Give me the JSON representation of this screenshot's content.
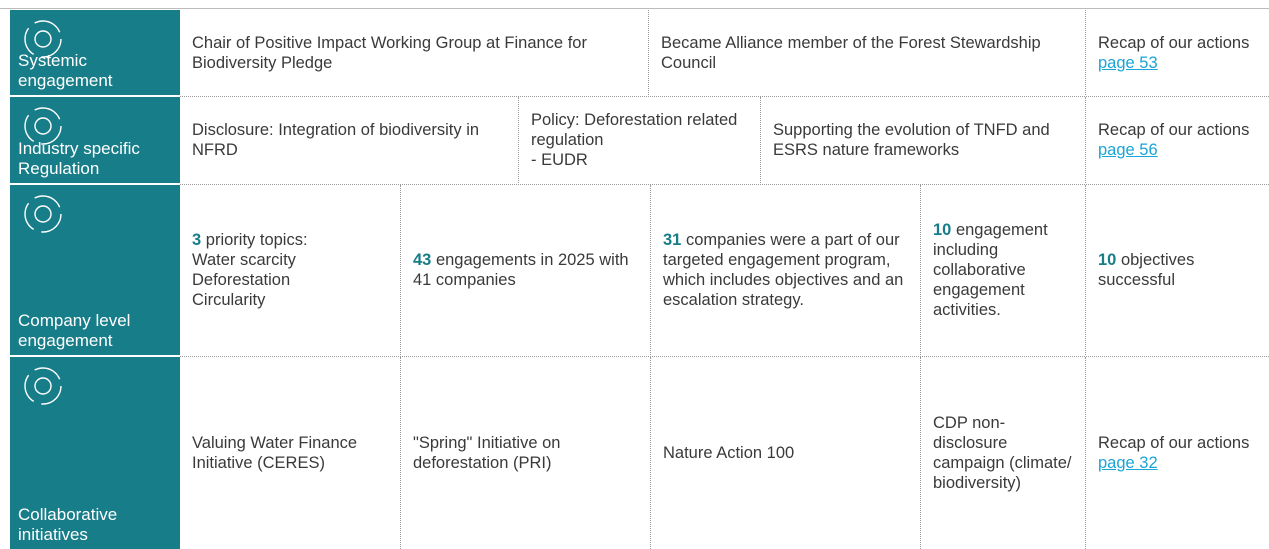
{
  "rows": [
    {
      "label": "Systemic engagement",
      "cells": [
        {
          "text": "Chair of Positive Impact Working Group at Finance for Biodiversity Pledge"
        },
        {
          "text": "Became Alliance member of the Forest Stewardship Council"
        },
        {
          "text": "Recap of our actions",
          "link": "page 53"
        }
      ]
    },
    {
      "label": "Industry specific Regulation",
      "cells": [
        {
          "text": "Disclosure: Integration of biodiversity in NFRD"
        },
        {
          "text": "Policy: Deforestation related regulation",
          "items": [
            "- EUDR"
          ]
        },
        {
          "text": "Supporting the evolution of TNFD and ESRS nature frameworks"
        },
        {
          "text": "Recap of our actions",
          "link": "page 56"
        }
      ]
    },
    {
      "label": "Company level engagement",
      "cells": [
        {
          "highlight": "3",
          "text": "priority topics:",
          "items": [
            "Water scarcity",
            "Deforestation",
            "Circularity"
          ]
        },
        {
          "highlight": "43",
          "text": "engagements in 2025 with 41 companies"
        },
        {
          "highlight": "31",
          "text": "companies were a part of our targeted engagement program, which includes objectives and an escalation strategy."
        },
        {
          "highlight": "10",
          "text": "engagement including collaborative engagement activities."
        },
        {
          "highlight": "10",
          "text": "objectives successful"
        }
      ]
    },
    {
      "label": "Collaborative initiatives",
      "cells": [
        {
          "text": "Valuing Water Finance Initiative (CERES)"
        },
        {
          "text": "\"Spring\" Initiative on deforestation (PRI)"
        },
        {
          "text": "Nature Action 100"
        },
        {
          "text": "CDP non-disclosure campaign (climate/ biodiversity)"
        },
        {
          "text": "Recap of our actions",
          "link": "page 32"
        }
      ]
    }
  ]
}
